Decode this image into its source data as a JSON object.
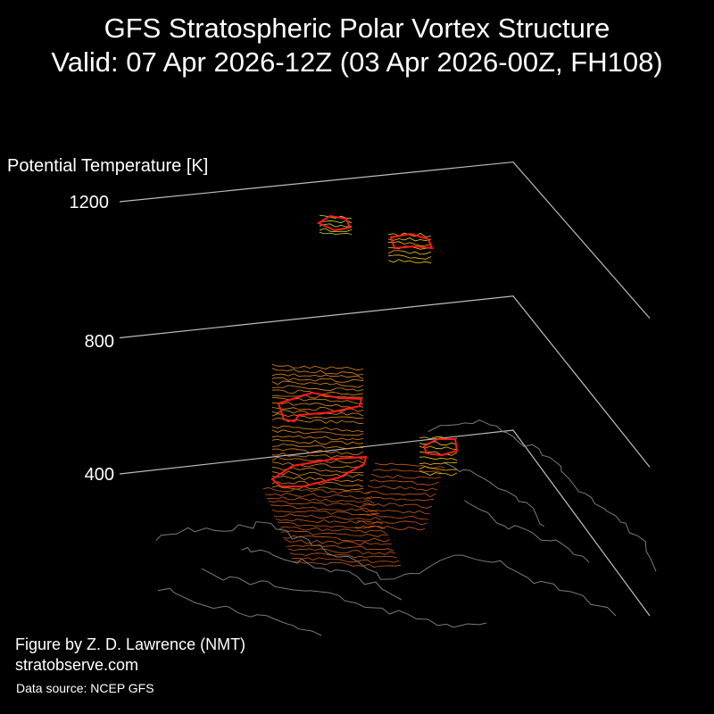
{
  "header": {
    "title_line1": "GFS Stratospheric Polar Vortex Structure",
    "title_line2": "Valid: 07 Apr 2026-12Z  (03 Apr 2026-00Z, FH108)"
  },
  "credits": {
    "author": "Figure by Z. D. Lawrence (NMT)",
    "website": "stratobserve.com",
    "source": "Data source: NCEP GFS"
  },
  "colors": {
    "background": "#000000",
    "axis": "#bdbdbd",
    "coastline": "#7a7a7a",
    "vortex_edge": "#ff1a1a",
    "contour_low": "#c85a14",
    "contour_mid": "#e08a1e",
    "contour_high": "#f0c020",
    "contour_top": "#c8e040"
  },
  "chart_data": {
    "type": "3d-isosurface",
    "zlabel": "Potential Temperature [K]",
    "zticks": [
      400,
      800,
      1200
    ],
    "zlim": [
      400,
      1200
    ],
    "grid": true,
    "series": [
      {
        "name": "vortex edge",
        "color": "red"
      },
      {
        "name": "contours",
        "color": "orange-yellow"
      }
    ]
  }
}
